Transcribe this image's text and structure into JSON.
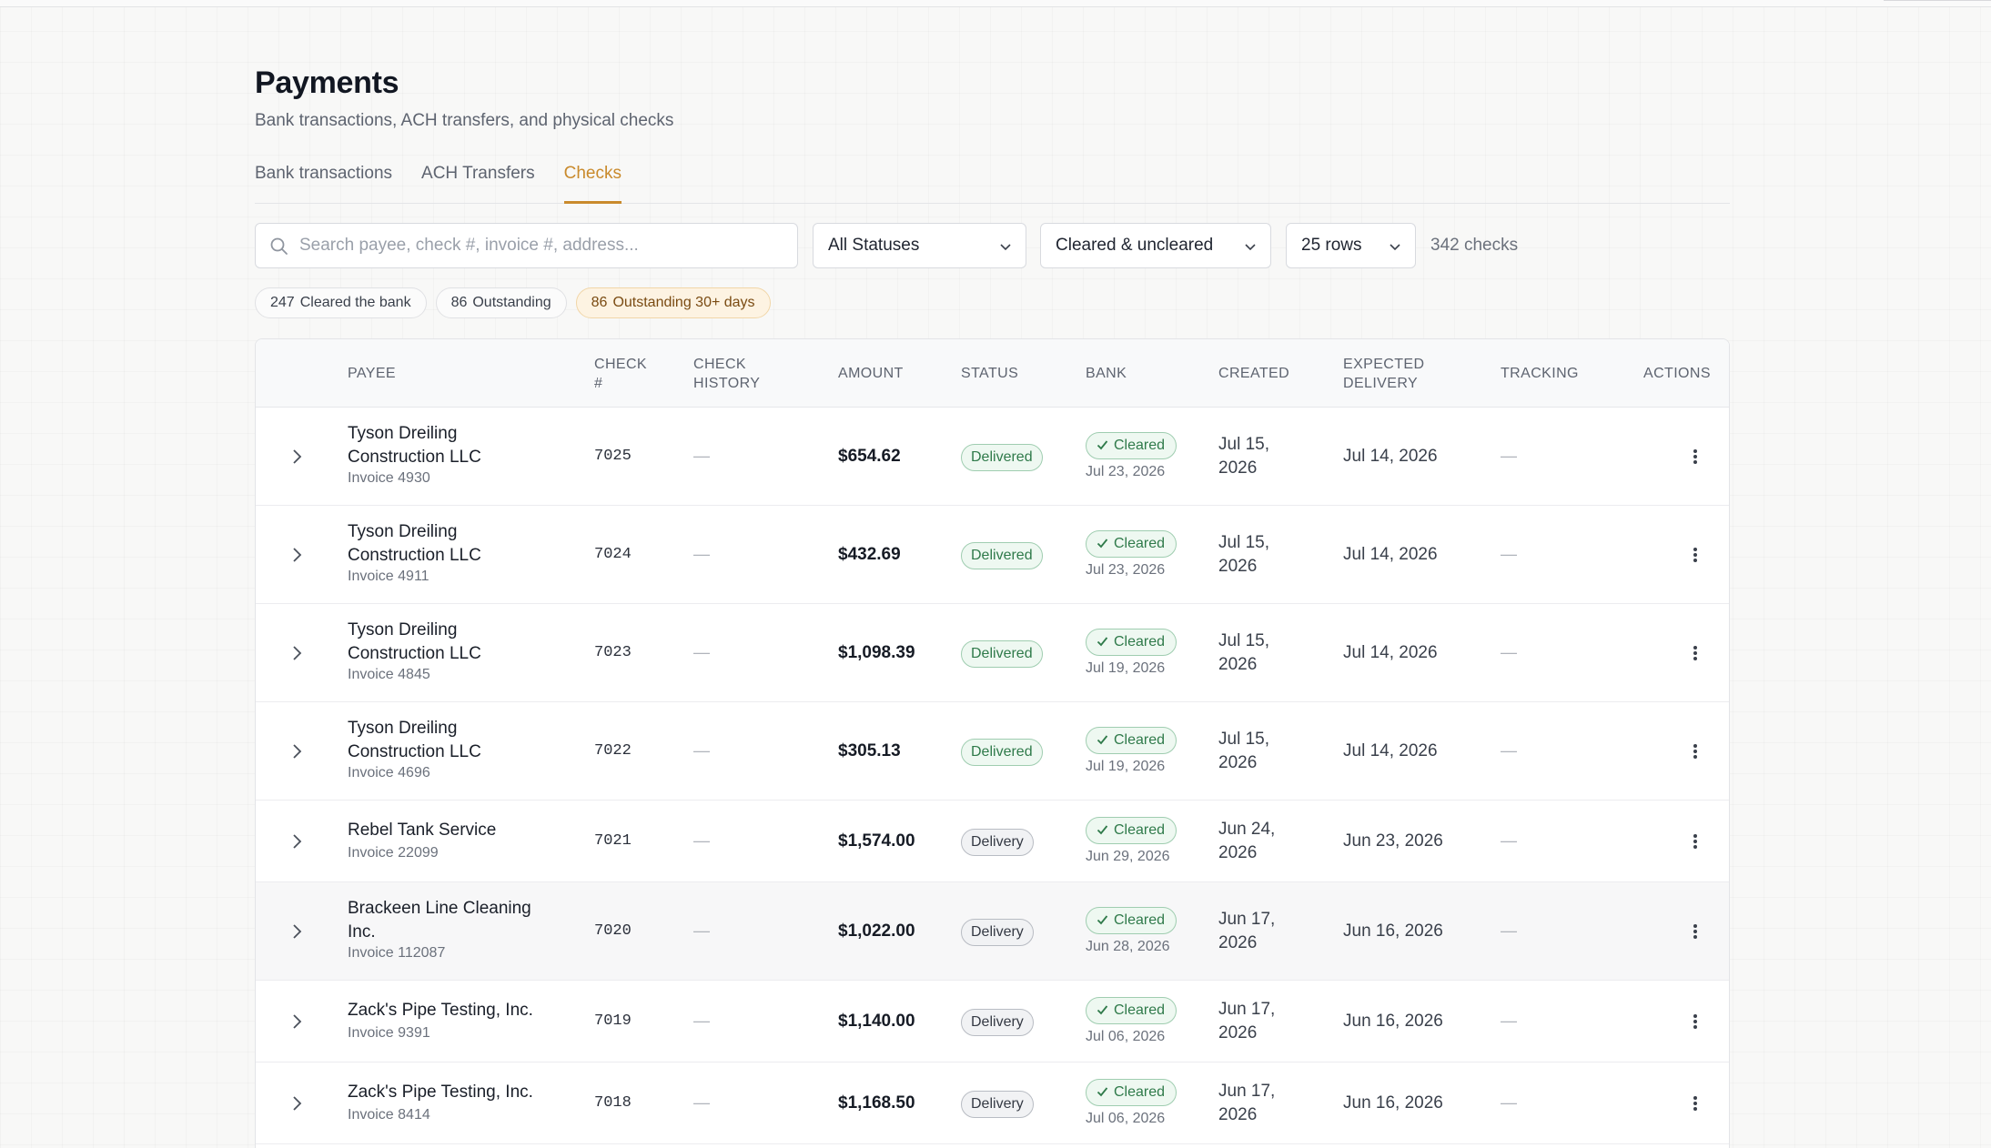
{
  "header": {
    "title": "Payments",
    "subtitle": "Bank transactions, ACH transfers, and physical checks"
  },
  "tabs": [
    {
      "label": "Bank transactions",
      "active": false
    },
    {
      "label": "ACH Transfers",
      "active": false
    },
    {
      "label": "Checks",
      "active": true
    }
  ],
  "filters": {
    "search_placeholder": "Search payee, check #, invoice #, address...",
    "search_value": "",
    "status_select": "All Statuses",
    "cleared_select": "Cleared & uncleared",
    "rows_select": "25 rows",
    "count_text": "342 checks"
  },
  "chips": [
    {
      "count": "247",
      "label": "Cleared the bank"
    },
    {
      "count": "86",
      "label": "Outstanding"
    },
    {
      "count": "86",
      "label": "Outstanding 30+ days"
    }
  ],
  "columns": {
    "payee": "Payee",
    "check_no_1": "Check",
    "check_no_2": "#",
    "history_1": "Check",
    "history_2": "History",
    "amount": "Amount",
    "status": "Status",
    "bank": "Bank",
    "created": "Created",
    "expected_1": "Expected",
    "expected_2": "Delivery",
    "tracking": "Tracking",
    "actions": "Actions"
  },
  "rows": [
    {
      "payee_line1": "Tyson Dreiling",
      "payee_line2": "Construction LLC",
      "invoice": "Invoice 4930",
      "check_no": "7025",
      "history": "—",
      "amount": "$654.62",
      "status": "Delivered",
      "bank_status": "Cleared",
      "bank_date": "Jul 23, 2026",
      "created_1": "Jul 15,",
      "created_2": "2026",
      "expected": "Jul 14, 2026",
      "tracking": "—"
    },
    {
      "payee_line1": "Tyson Dreiling",
      "payee_line2": "Construction LLC",
      "invoice": "Invoice 4911",
      "check_no": "7024",
      "history": "—",
      "amount": "$432.69",
      "status": "Delivered",
      "bank_status": "Cleared",
      "bank_date": "Jul 23, 2026",
      "created_1": "Jul 15,",
      "created_2": "2026",
      "expected": "Jul 14, 2026",
      "tracking": "—"
    },
    {
      "payee_line1": "Tyson Dreiling",
      "payee_line2": "Construction LLC",
      "invoice": "Invoice 4845",
      "check_no": "7023",
      "history": "—",
      "amount": "$1,098.39",
      "status": "Delivered",
      "bank_status": "Cleared",
      "bank_date": "Jul 19, 2026",
      "created_1": "Jul 15,",
      "created_2": "2026",
      "expected": "Jul 14, 2026",
      "tracking": "—"
    },
    {
      "payee_line1": "Tyson Dreiling",
      "payee_line2": "Construction LLC",
      "invoice": "Invoice 4696",
      "check_no": "7022",
      "history": "—",
      "amount": "$305.13",
      "status": "Delivered",
      "bank_status": "Cleared",
      "bank_date": "Jul 19, 2026",
      "created_1": "Jul 15,",
      "created_2": "2026",
      "expected": "Jul 14, 2026",
      "tracking": "—"
    },
    {
      "payee_line1": "Rebel Tank Service",
      "payee_line2": "",
      "invoice": "Invoice 22099",
      "check_no": "7021",
      "history": "—",
      "amount": "$1,574.00",
      "status": "Delivery",
      "bank_status": "Cleared",
      "bank_date": "Jun 29, 2026",
      "created_1": "Jun 24,",
      "created_2": "2026",
      "expected": "Jun 23, 2026",
      "tracking": "—"
    },
    {
      "payee_line1": "Brackeen Line Cleaning",
      "payee_line2": "Inc.",
      "invoice": "Invoice 112087",
      "check_no": "7020",
      "history": "—",
      "amount": "$1,022.00",
      "status": "Delivery",
      "bank_status": "Cleared",
      "bank_date": "Jun 28, 2026",
      "created_1": "Jun 17,",
      "created_2": "2026",
      "expected": "Jun 16, 2026",
      "tracking": "—"
    },
    {
      "payee_line1": "Zack's Pipe Testing, Inc.",
      "payee_line2": "",
      "invoice": "Invoice 9391",
      "check_no": "7019",
      "history": "—",
      "amount": "$1,140.00",
      "status": "Delivery",
      "bank_status": "Cleared",
      "bank_date": "Jul 06, 2026",
      "created_1": "Jun 17,",
      "created_2": "2026",
      "expected": "Jun 16, 2026",
      "tracking": "—"
    },
    {
      "payee_line1": "Zack's Pipe Testing, Inc.",
      "payee_line2": "",
      "invoice": "Invoice 8414",
      "check_no": "7018",
      "history": "—",
      "amount": "$1,168.50",
      "status": "Delivery",
      "bank_status": "Cleared",
      "bank_date": "Jul 06, 2026",
      "created_1": "Jun 17,",
      "created_2": "2026",
      "expected": "Jun 16, 2026",
      "tracking": "—"
    }
  ],
  "colors": {
    "accent": "#c98a2c",
    "cleared_green": "#2f7a4a",
    "warn_chip_bg": "#fdf3e2"
  }
}
